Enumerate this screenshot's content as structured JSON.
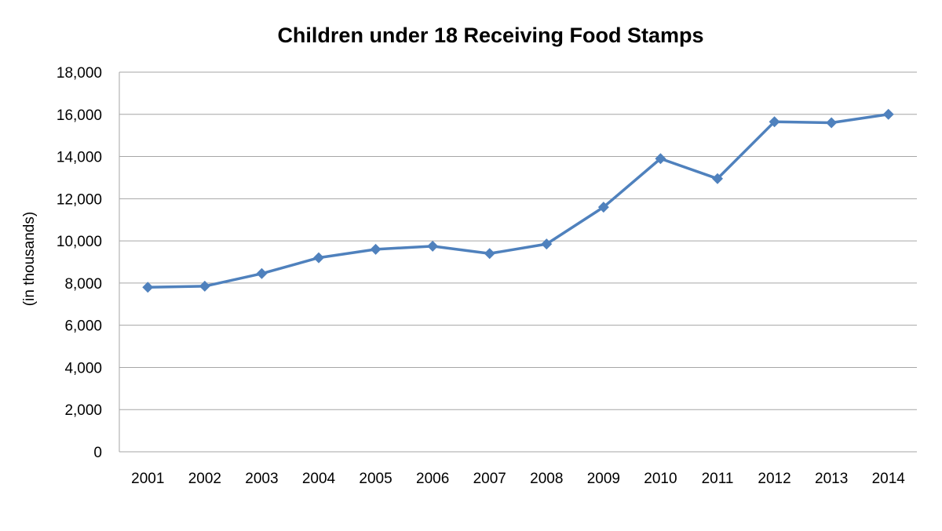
{
  "chart_data": {
    "type": "line",
    "title": "Children under 18 Receiving Food Stamps",
    "xlabel": "",
    "ylabel": "(in thousands)",
    "ylim": [
      0,
      18000
    ],
    "yticks": [
      0,
      2000,
      4000,
      6000,
      8000,
      10000,
      12000,
      14000,
      16000,
      18000
    ],
    "ytick_labels": [
      "0",
      "2,000",
      "4,000",
      "6,000",
      "8,000",
      "10,000",
      "12,000",
      "14,000",
      "16,000",
      "18,000"
    ],
    "grid": true,
    "legend": "none",
    "categories": [
      "2001",
      "2002",
      "2003",
      "2004",
      "2005",
      "2006",
      "2007",
      "2008",
      "2009",
      "2010",
      "2011",
      "2012",
      "2013",
      "2014"
    ],
    "series": [
      {
        "name": "Children under 18 Receiving Food Stamps",
        "color": "#4F81BD",
        "marker": "diamond",
        "values": [
          7800,
          7850,
          8450,
          9200,
          9600,
          9750,
          9400,
          9850,
          11600,
          13900,
          12950,
          15650,
          15600,
          16000
        ]
      }
    ]
  }
}
